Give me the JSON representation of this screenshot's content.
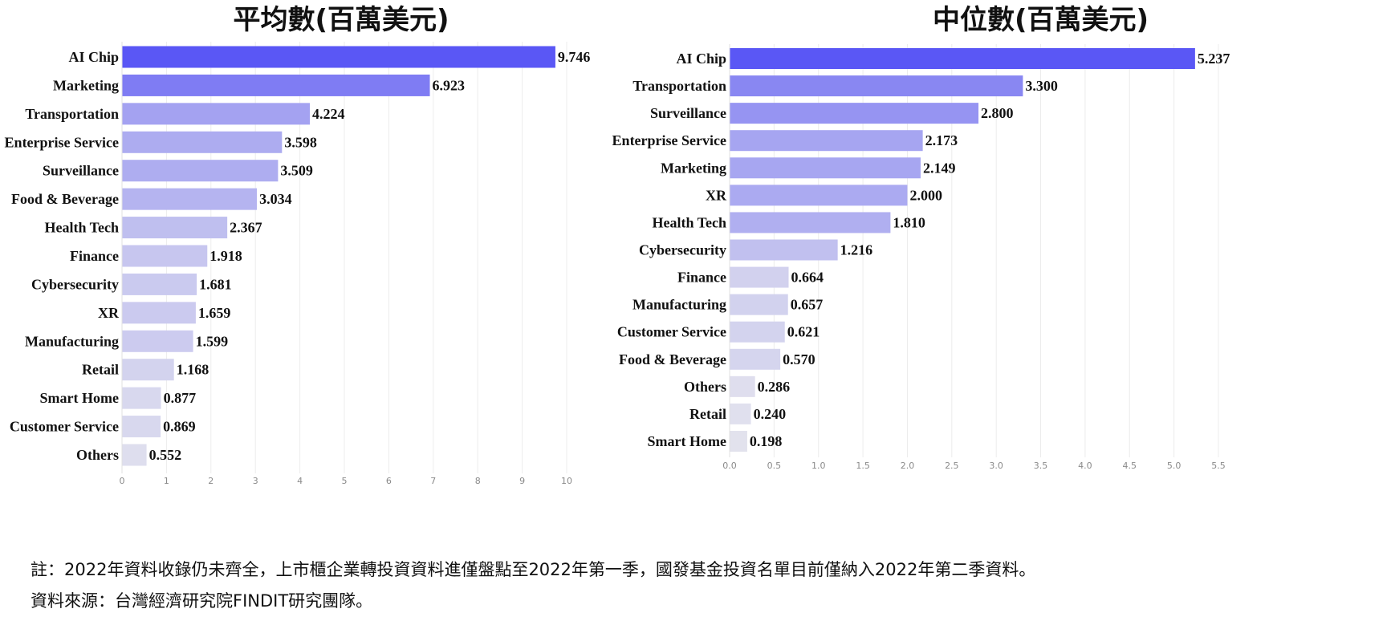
{
  "chart_data": [
    {
      "type": "bar",
      "orientation": "horizontal",
      "title": "平均數(百萬美元)",
      "categories": [
        "AI Chip",
        "Marketing",
        "Transportation",
        "Enterprise Service",
        "Surveillance",
        "Food & Beverage",
        "Health Tech",
        "Finance",
        "Cybersecurity",
        "XR",
        "Manufacturing",
        "Retail",
        "Smart Home",
        "Customer Service",
        "Others"
      ],
      "values": [
        9.746,
        6.923,
        4.224,
        3.598,
        3.509,
        3.034,
        2.367,
        1.918,
        1.681,
        1.659,
        1.599,
        1.168,
        0.877,
        0.869,
        0.552
      ],
      "value_labels": [
        "9.746",
        "6.923",
        "4.224",
        "3.598",
        "3.509",
        "3.034",
        "2.367",
        "1.918",
        "1.681",
        "1.659",
        "1.599",
        "1.168",
        "0.877",
        "0.869",
        "0.552"
      ],
      "xticks": [
        "0",
        "1",
        "2",
        "3",
        "4",
        "5",
        "6",
        "7",
        "8",
        "9",
        "10"
      ],
      "xlim": [
        0,
        10
      ],
      "grid": "vertical",
      "color_high": "#5a57f5",
      "color_low": "#ebebed"
    },
    {
      "type": "bar",
      "orientation": "horizontal",
      "title": "中位數(百萬美元)",
      "categories": [
        "AI Chip",
        "Transportation",
        "Surveillance",
        "Enterprise Service",
        "Marketing",
        "XR",
        "Health Tech",
        "Cybersecurity",
        "Finance",
        "Manufacturing",
        "Customer Service",
        "Food & Beverage",
        "Others",
        "Retail",
        "Smart Home"
      ],
      "values": [
        5.237,
        3.3,
        2.8,
        2.173,
        2.149,
        2.0,
        1.81,
        1.216,
        0.664,
        0.657,
        0.621,
        0.57,
        0.286,
        0.24,
        0.198
      ],
      "value_labels": [
        "5.237",
        "3.300",
        "2.800",
        "2.173",
        "2.149",
        "2.000",
        "1.810",
        "1.216",
        "0.664",
        "0.657",
        "0.621",
        "0.570",
        "0.286",
        "0.240",
        "0.198"
      ],
      "xticks": [
        "0.0",
        "0.5",
        "1.0",
        "1.5",
        "2.0",
        "2.5",
        "3.0",
        "3.5",
        "4.0",
        "4.5",
        "5.0",
        "5.5"
      ],
      "xlim": [
        0,
        5.5
      ],
      "grid": "vertical",
      "color_high": "#5a57f5",
      "color_low": "#ebebed"
    }
  ],
  "footer": {
    "note": "註：2022年資料收錄仍未齊全，上市櫃企業轉投資資料進僅盤點至2022年第一季，國發基金投資名單目前僅納入2022年第二季資料。",
    "source": "資料來源：台灣經濟研究院FINDIT研究團隊。"
  }
}
